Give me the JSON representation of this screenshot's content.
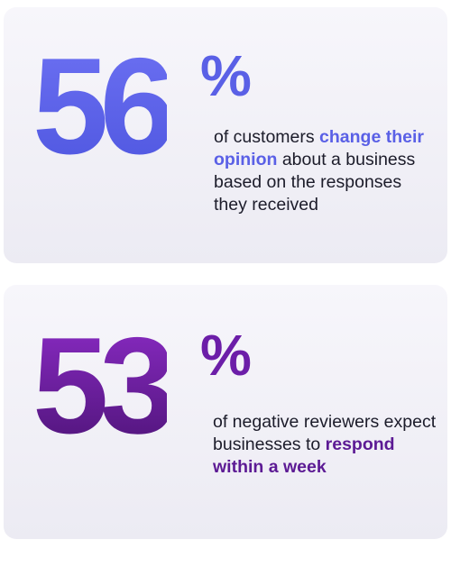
{
  "stat1": {
    "number": "56",
    "percent": "%",
    "text_before": "of customers ",
    "highlight": "change their opinion",
    "text_after": " about a business based on the responses they received",
    "color": "#5a60e6"
  },
  "stat2": {
    "number": "53",
    "percent": "%",
    "text_before": "of negative reviewers expect businesses to ",
    "highlight": "respond within a week",
    "text_after": "",
    "color": "#6c1ea8"
  }
}
